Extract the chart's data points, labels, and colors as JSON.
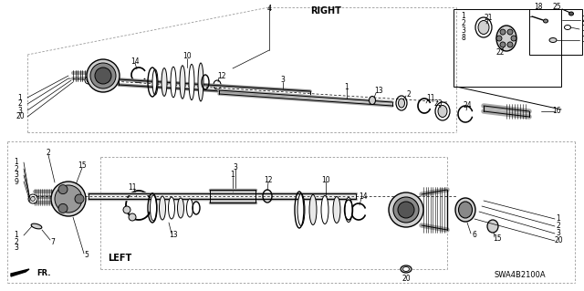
{
  "bg_color": "#ffffff",
  "diagram_code": "SWA4B2100A",
  "right_label": "RIGHT",
  "left_label": "LEFT",
  "fr_label": "FR.",
  "line_color": "#000000",
  "gray_color": "#808080",
  "light_gray": "#d0d0d0",
  "mid_gray": "#a0a0a0",
  "dark_gray": "#606060"
}
